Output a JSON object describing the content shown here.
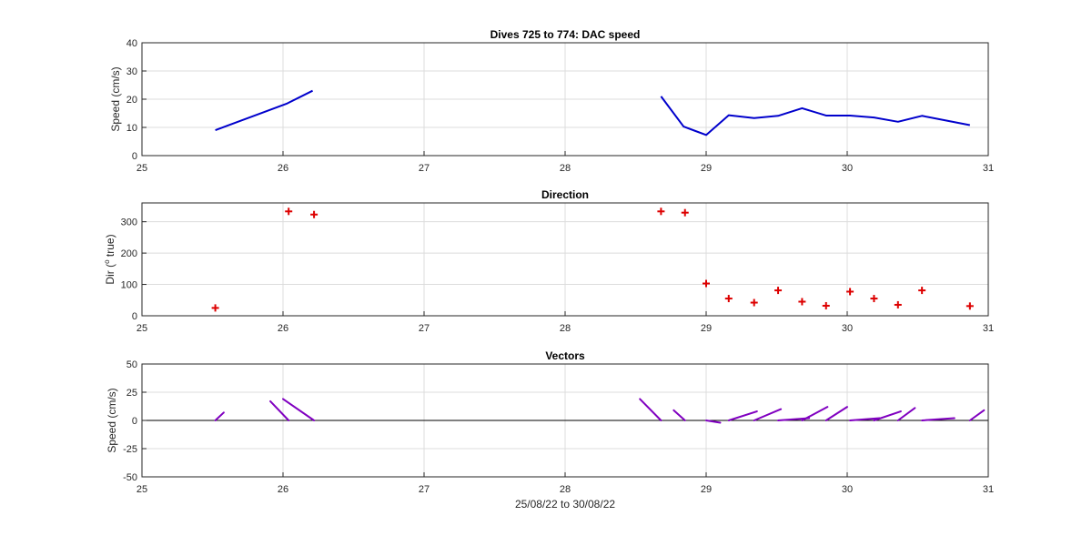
{
  "figure": {
    "xlabel": "25/08/22 to 30/08/22"
  },
  "chart_data": [
    {
      "type": "line",
      "title": "Dives 725 to 774: DAC speed",
      "xlabel": "",
      "ylabel": "Speed (cm/s)",
      "xlim": [
        25,
        31
      ],
      "ylim": [
        0,
        40
      ],
      "xticks": [
        25,
        26,
        27,
        28,
        29,
        30,
        31
      ],
      "yticks": [
        0,
        10,
        20,
        30,
        40
      ],
      "grid": true,
      "color": "#0000cc",
      "series": [
        {
          "x": [
            25.52,
            26.03,
            26.21
          ],
          "y": [
            9,
            18.5,
            23
          ]
        },
        {
          "x": [
            28.68,
            28.84,
            29.0,
            29.16,
            29.34,
            29.51,
            29.68,
            29.85,
            30.02,
            30.19,
            30.36,
            30.53,
            30.87
          ],
          "y": [
            21,
            10.3,
            7.3,
            14.3,
            13.3,
            14.1,
            16.8,
            14.2,
            14.2,
            13.5,
            12.0,
            14.1,
            10.8
          ]
        }
      ]
    },
    {
      "type": "scatter",
      "title": "Direction",
      "xlabel": "",
      "ylabel_main": "Dir (",
      "ylabel_sup": "o",
      "ylabel_tail": " true)",
      "xlim": [
        25,
        31
      ],
      "ylim": [
        0,
        360
      ],
      "xticks": [
        25,
        26,
        27,
        28,
        29,
        30,
        31
      ],
      "yticks": [
        0,
        100,
        200,
        300
      ],
      "grid": true,
      "color": "#dd0000",
      "marker": "+",
      "x": [
        25.52,
        26.04,
        26.22,
        28.68,
        28.85,
        29.0,
        29.16,
        29.34,
        29.51,
        29.68,
        29.85,
        30.02,
        30.19,
        30.36,
        30.53,
        30.87
      ],
      "y": [
        25,
        333,
        323,
        333,
        329,
        103,
        55,
        42,
        81,
        45,
        32,
        77,
        55,
        35,
        81,
        31
      ]
    },
    {
      "type": "line",
      "title": "Vectors",
      "xlabel": "",
      "ylabel": "Speed (cm/s)",
      "xlim": [
        25,
        31
      ],
      "ylim": [
        -50,
        50
      ],
      "xticks": [
        25,
        26,
        27,
        28,
        29,
        30,
        31
      ],
      "yticks": [
        -50,
        -25,
        0,
        25,
        50
      ],
      "grid": true,
      "color": "#8000c0",
      "segments": [
        {
          "x": [
            25.52,
            25.58
          ],
          "y": [
            0,
            7
          ]
        },
        {
          "x": [
            26.04,
            25.91
          ],
          "y": [
            0,
            17
          ]
        },
        {
          "x": [
            26.22,
            26.0
          ],
          "y": [
            0,
            19
          ]
        },
        {
          "x": [
            28.68,
            28.53
          ],
          "y": [
            0,
            19
          ]
        },
        {
          "x": [
            28.85,
            28.77
          ],
          "y": [
            0,
            9
          ]
        },
        {
          "x": [
            29.0,
            29.1
          ],
          "y": [
            0,
            -2
          ]
        },
        {
          "x": [
            29.16,
            29.36
          ],
          "y": [
            0,
            8
          ]
        },
        {
          "x": [
            29.34,
            29.53
          ],
          "y": [
            0,
            10
          ]
        },
        {
          "x": [
            29.51,
            29.73
          ],
          "y": [
            0,
            2
          ]
        },
        {
          "x": [
            29.68,
            29.86
          ],
          "y": [
            0,
            12
          ]
        },
        {
          "x": [
            29.85,
            30.0
          ],
          "y": [
            0,
            12
          ]
        },
        {
          "x": [
            30.02,
            30.23
          ],
          "y": [
            0,
            2
          ]
        },
        {
          "x": [
            30.19,
            30.38
          ],
          "y": [
            0,
            8
          ]
        },
        {
          "x": [
            30.36,
            30.48
          ],
          "y": [
            0,
            11
          ]
        },
        {
          "x": [
            30.53,
            30.76
          ],
          "y": [
            0,
            2
          ]
        },
        {
          "x": [
            30.87,
            30.97
          ],
          "y": [
            0,
            9
          ]
        }
      ]
    }
  ]
}
